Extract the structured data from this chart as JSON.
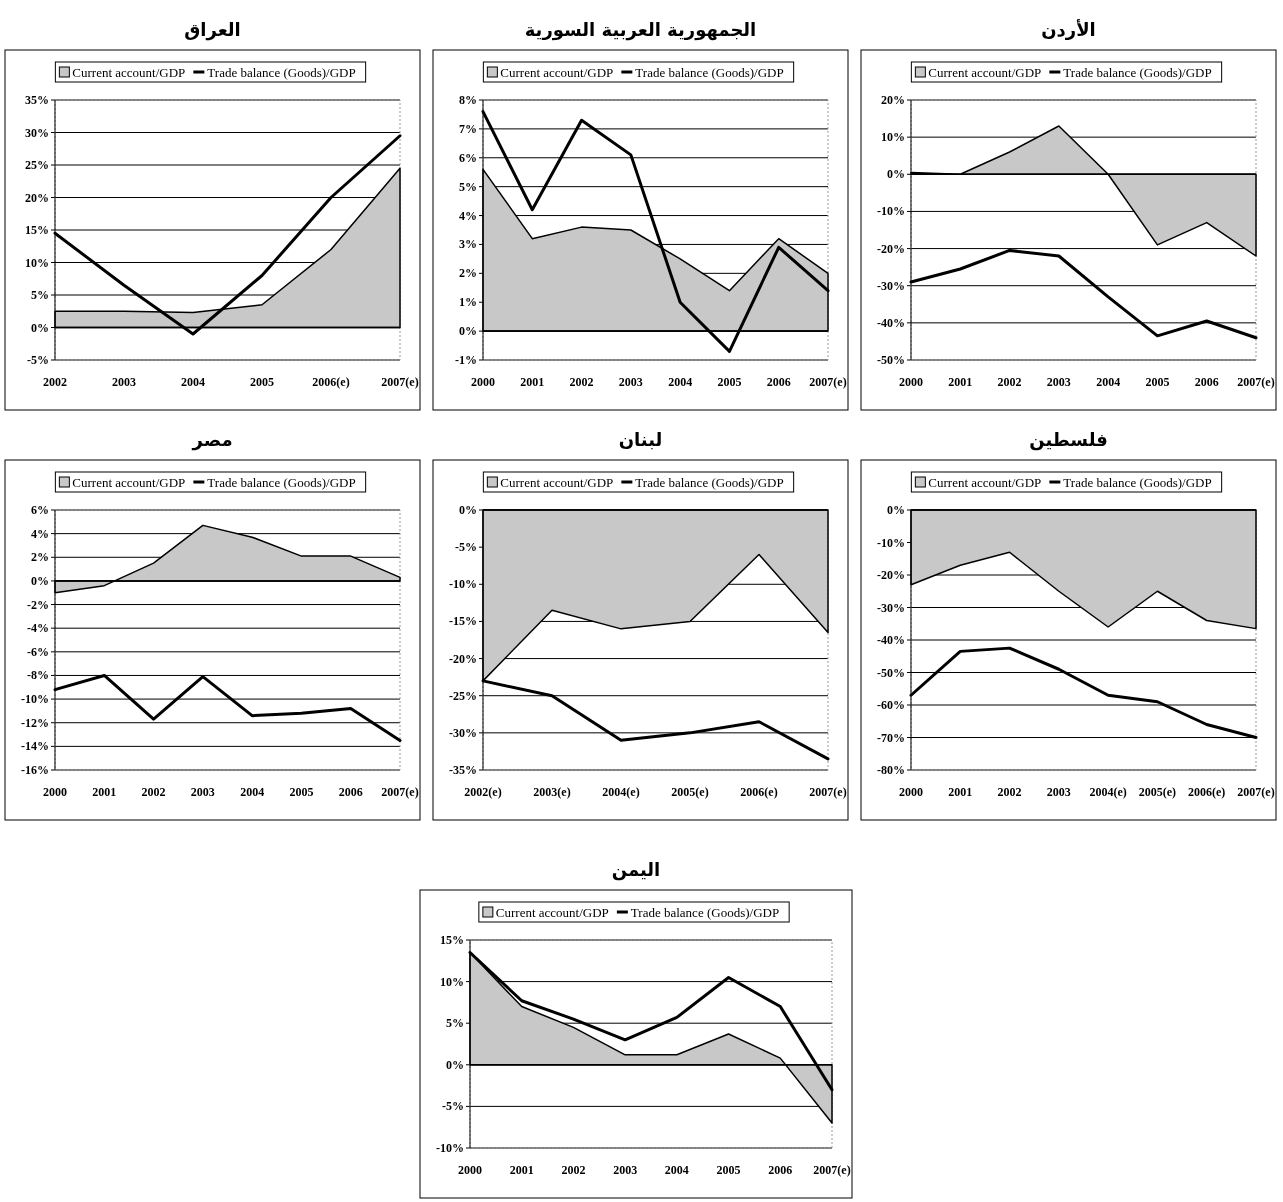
{
  "chart_data": [
    {
      "type": "line",
      "title": "العراق",
      "categories": [
        "2002",
        "2003",
        "2004",
        "2005",
        "2006(e)",
        "2007(e)"
      ],
      "series": [
        {
          "name": "Current account/GDP",
          "type": "area",
          "color": "#c8c8c8",
          "values": [
            2.5,
            2.5,
            2.3,
            3.5,
            12,
            24.5
          ]
        },
        {
          "name": "Trade balance (Goods)/GDP",
          "type": "line",
          "color": "#000000",
          "values": [
            14.5,
            6.5,
            -1,
            8,
            20,
            29.5
          ]
        }
      ],
      "ylim": [
        -5,
        35
      ],
      "yticks": [
        {
          "value": -5,
          "label": "-5%"
        },
        {
          "value": 0,
          "label": "0%"
        },
        {
          "value": 5,
          "label": "5%"
        },
        {
          "value": 10,
          "label": "10%"
        },
        {
          "value": 15,
          "label": "15%"
        },
        {
          "value": 20,
          "label": "20%"
        },
        {
          "value": 25,
          "label": "25%"
        },
        {
          "value": 30,
          "label": "30%"
        },
        {
          "value": 35,
          "label": "35%"
        }
      ],
      "grid": "y",
      "legend": "top"
    },
    {
      "type": "line",
      "title": "الجمهورية العربية السورية",
      "categories": [
        "2000",
        "2001",
        "2002",
        "2003",
        "2004",
        "2005",
        "2006",
        "2007(e)"
      ],
      "series": [
        {
          "name": "Current account/GDP",
          "type": "area",
          "color": "#c8c8c8",
          "values": [
            5.6,
            3.2,
            3.6,
            3.5,
            2.5,
            1.4,
            3.2,
            2.0
          ]
        },
        {
          "name": "Trade balance (Goods)/GDP",
          "type": "line",
          "color": "#000000",
          "values": [
            7.6,
            4.2,
            7.3,
            6.1,
            1.0,
            -0.7,
            2.9,
            1.4
          ]
        }
      ],
      "ylim": [
        -1,
        8
      ],
      "yticks": [
        {
          "value": -1,
          "label": "-1%"
        },
        {
          "value": 0,
          "label": "0%"
        },
        {
          "value": 1,
          "label": "1%"
        },
        {
          "value": 2,
          "label": "2%"
        },
        {
          "value": 3,
          "label": "3%"
        },
        {
          "value": 4,
          "label": "4%"
        },
        {
          "value": 5,
          "label": "5%"
        },
        {
          "value": 6,
          "label": "6%"
        },
        {
          "value": 7,
          "label": "7%"
        },
        {
          "value": 8,
          "label": "8%"
        }
      ],
      "grid": "y",
      "legend": "top"
    },
    {
      "type": "line",
      "title": "الأردن",
      "categories": [
        "2000",
        "2001",
        "2002",
        "2003",
        "2004",
        "2005",
        "2006",
        "2007(e)"
      ],
      "series": [
        {
          "name": "Current account/GDP",
          "type": "area",
          "color": "#c8c8c8",
          "values": [
            0.5,
            0,
            6,
            13,
            0,
            -19,
            -13,
            -22
          ]
        },
        {
          "name": "Trade balance (Goods)/GDP",
          "type": "line",
          "color": "#000000",
          "values": [
            -29,
            -25.5,
            -20.5,
            -22,
            -33,
            -43.5,
            -39.5,
            -44
          ]
        }
      ],
      "ylim": [
        -50,
        20
      ],
      "yticks": [
        {
          "value": -50,
          "label": "-50%"
        },
        {
          "value": -40,
          "label": "-40%"
        },
        {
          "value": -30,
          "label": "-30%"
        },
        {
          "value": -20,
          "label": "-20%"
        },
        {
          "value": -10,
          "label": "-10%"
        },
        {
          "value": 0,
          "label": "0%"
        },
        {
          "value": 10,
          "label": "10%"
        },
        {
          "value": 20,
          "label": "20%"
        }
      ],
      "grid": "y",
      "legend": "top"
    },
    {
      "type": "line",
      "title": "مصر",
      "categories": [
        "2000",
        "2001",
        "2002",
        "2003",
        "2004",
        "2005",
        "2006",
        "2007(e)"
      ],
      "series": [
        {
          "name": "Current account/GDP",
          "type": "area",
          "color": "#c8c8c8",
          "values": [
            -1,
            -0.4,
            1.5,
            4.7,
            3.7,
            2.1,
            2.1,
            0.3
          ]
        },
        {
          "name": "Trade balance (Goods)/GDP",
          "type": "line",
          "color": "#000000",
          "values": [
            -9.2,
            -8,
            -11.7,
            -8.1,
            -11.4,
            -11.2,
            -10.8,
            -13.5
          ]
        }
      ],
      "ylim": [
        -16,
        6
      ],
      "yticks": [
        {
          "value": -16,
          "label": "-16%"
        },
        {
          "value": -14,
          "label": "-14%"
        },
        {
          "value": -12,
          "label": "-12%"
        },
        {
          "value": -10,
          "label": "-10%"
        },
        {
          "value": -8,
          "label": "-8%"
        },
        {
          "value": -6,
          "label": "-6%"
        },
        {
          "value": -4,
          "label": "-4%"
        },
        {
          "value": -2,
          "label": "-2%"
        },
        {
          "value": 0,
          "label": "0%"
        },
        {
          "value": 2,
          "label": "2%"
        },
        {
          "value": 4,
          "label": "4%"
        },
        {
          "value": 6,
          "label": "6%"
        }
      ],
      "grid": "y",
      "legend": "top"
    },
    {
      "type": "line",
      "title": "لبنان",
      "categories": [
        "2002(e)",
        "2003(e)",
        "2004(e)",
        "2005(e)",
        "2006(e)",
        "2007(e)"
      ],
      "series": [
        {
          "name": "Current account/GDP",
          "type": "area",
          "color": "#c8c8c8",
          "values": [
            -23,
            -13.5,
            -16,
            -15,
            -6,
            -16.5
          ]
        },
        {
          "name": "Trade balance (Goods)/GDP",
          "type": "line",
          "color": "#000000",
          "values": [
            -23,
            -25,
            -31,
            -30,
            -28.5,
            -33.5
          ]
        }
      ],
      "ylim": [
        -35,
        0
      ],
      "yticks": [
        {
          "value": -35,
          "label": "-35%"
        },
        {
          "value": -30,
          "label": "-30%"
        },
        {
          "value": -25,
          "label": "-25%"
        },
        {
          "value": -20,
          "label": "-20%"
        },
        {
          "value": -15,
          "label": "-15%"
        },
        {
          "value": -10,
          "label": "-10%"
        },
        {
          "value": -5,
          "label": "-5%"
        },
        {
          "value": 0,
          "label": "0%"
        }
      ],
      "grid": "y",
      "legend": "top"
    },
    {
      "type": "line",
      "title": "فلسطين",
      "categories": [
        "2000",
        "2001",
        "2002",
        "2003",
        "2004(e)",
        "2005(e)",
        "2006(e)",
        "2007(e)"
      ],
      "series": [
        {
          "name": "Current account/GDP",
          "type": "area",
          "color": "#c8c8c8",
          "values": [
            -23,
            -17,
            -13,
            -25,
            -36,
            -25,
            -34,
            -36.5
          ]
        },
        {
          "name": "Trade balance (Goods)/GDP",
          "type": "line",
          "color": "#000000",
          "values": [
            -57,
            -43.5,
            -42.5,
            -49,
            -57,
            -59,
            -66,
            -70
          ]
        }
      ],
      "ylim": [
        -80,
        0
      ],
      "yticks": [
        {
          "value": -80,
          "label": "-80%"
        },
        {
          "value": -70,
          "label": "-70%"
        },
        {
          "value": -60,
          "label": "-60%"
        },
        {
          "value": -50,
          "label": "-50%"
        },
        {
          "value": -40,
          "label": "-40%"
        },
        {
          "value": -30,
          "label": "-30%"
        },
        {
          "value": -20,
          "label": "-20%"
        },
        {
          "value": -10,
          "label": "-10%"
        },
        {
          "value": 0,
          "label": "0%"
        }
      ],
      "grid": "y",
      "legend": "top"
    },
    {
      "type": "line",
      "title": "اليمن",
      "categories": [
        "2000",
        "2001",
        "2002",
        "2003",
        "2004",
        "2005",
        "2006",
        "2007(e)"
      ],
      "series": [
        {
          "name": "Current account/GDP",
          "type": "area",
          "color": "#c8c8c8",
          "values": [
            13.5,
            7,
            4.5,
            1.2,
            1.2,
            3.7,
            0.8,
            -7
          ]
        },
        {
          "name": "Trade balance (Goods)/GDP",
          "type": "line",
          "color": "#000000",
          "values": [
            13.5,
            7.7,
            5.5,
            3,
            5.7,
            10.5,
            7,
            -3
          ]
        }
      ],
      "ylim": [
        -10,
        15
      ],
      "yticks": [
        {
          "value": -10,
          "label": "-10%"
        },
        {
          "value": -5,
          "label": "-5%"
        },
        {
          "value": 0,
          "label": "0%"
        },
        {
          "value": 5,
          "label": "5%"
        },
        {
          "value": 10,
          "label": "10%"
        },
        {
          "value": 15,
          "label": "15%"
        }
      ],
      "grid": "y",
      "legend": "top"
    }
  ]
}
